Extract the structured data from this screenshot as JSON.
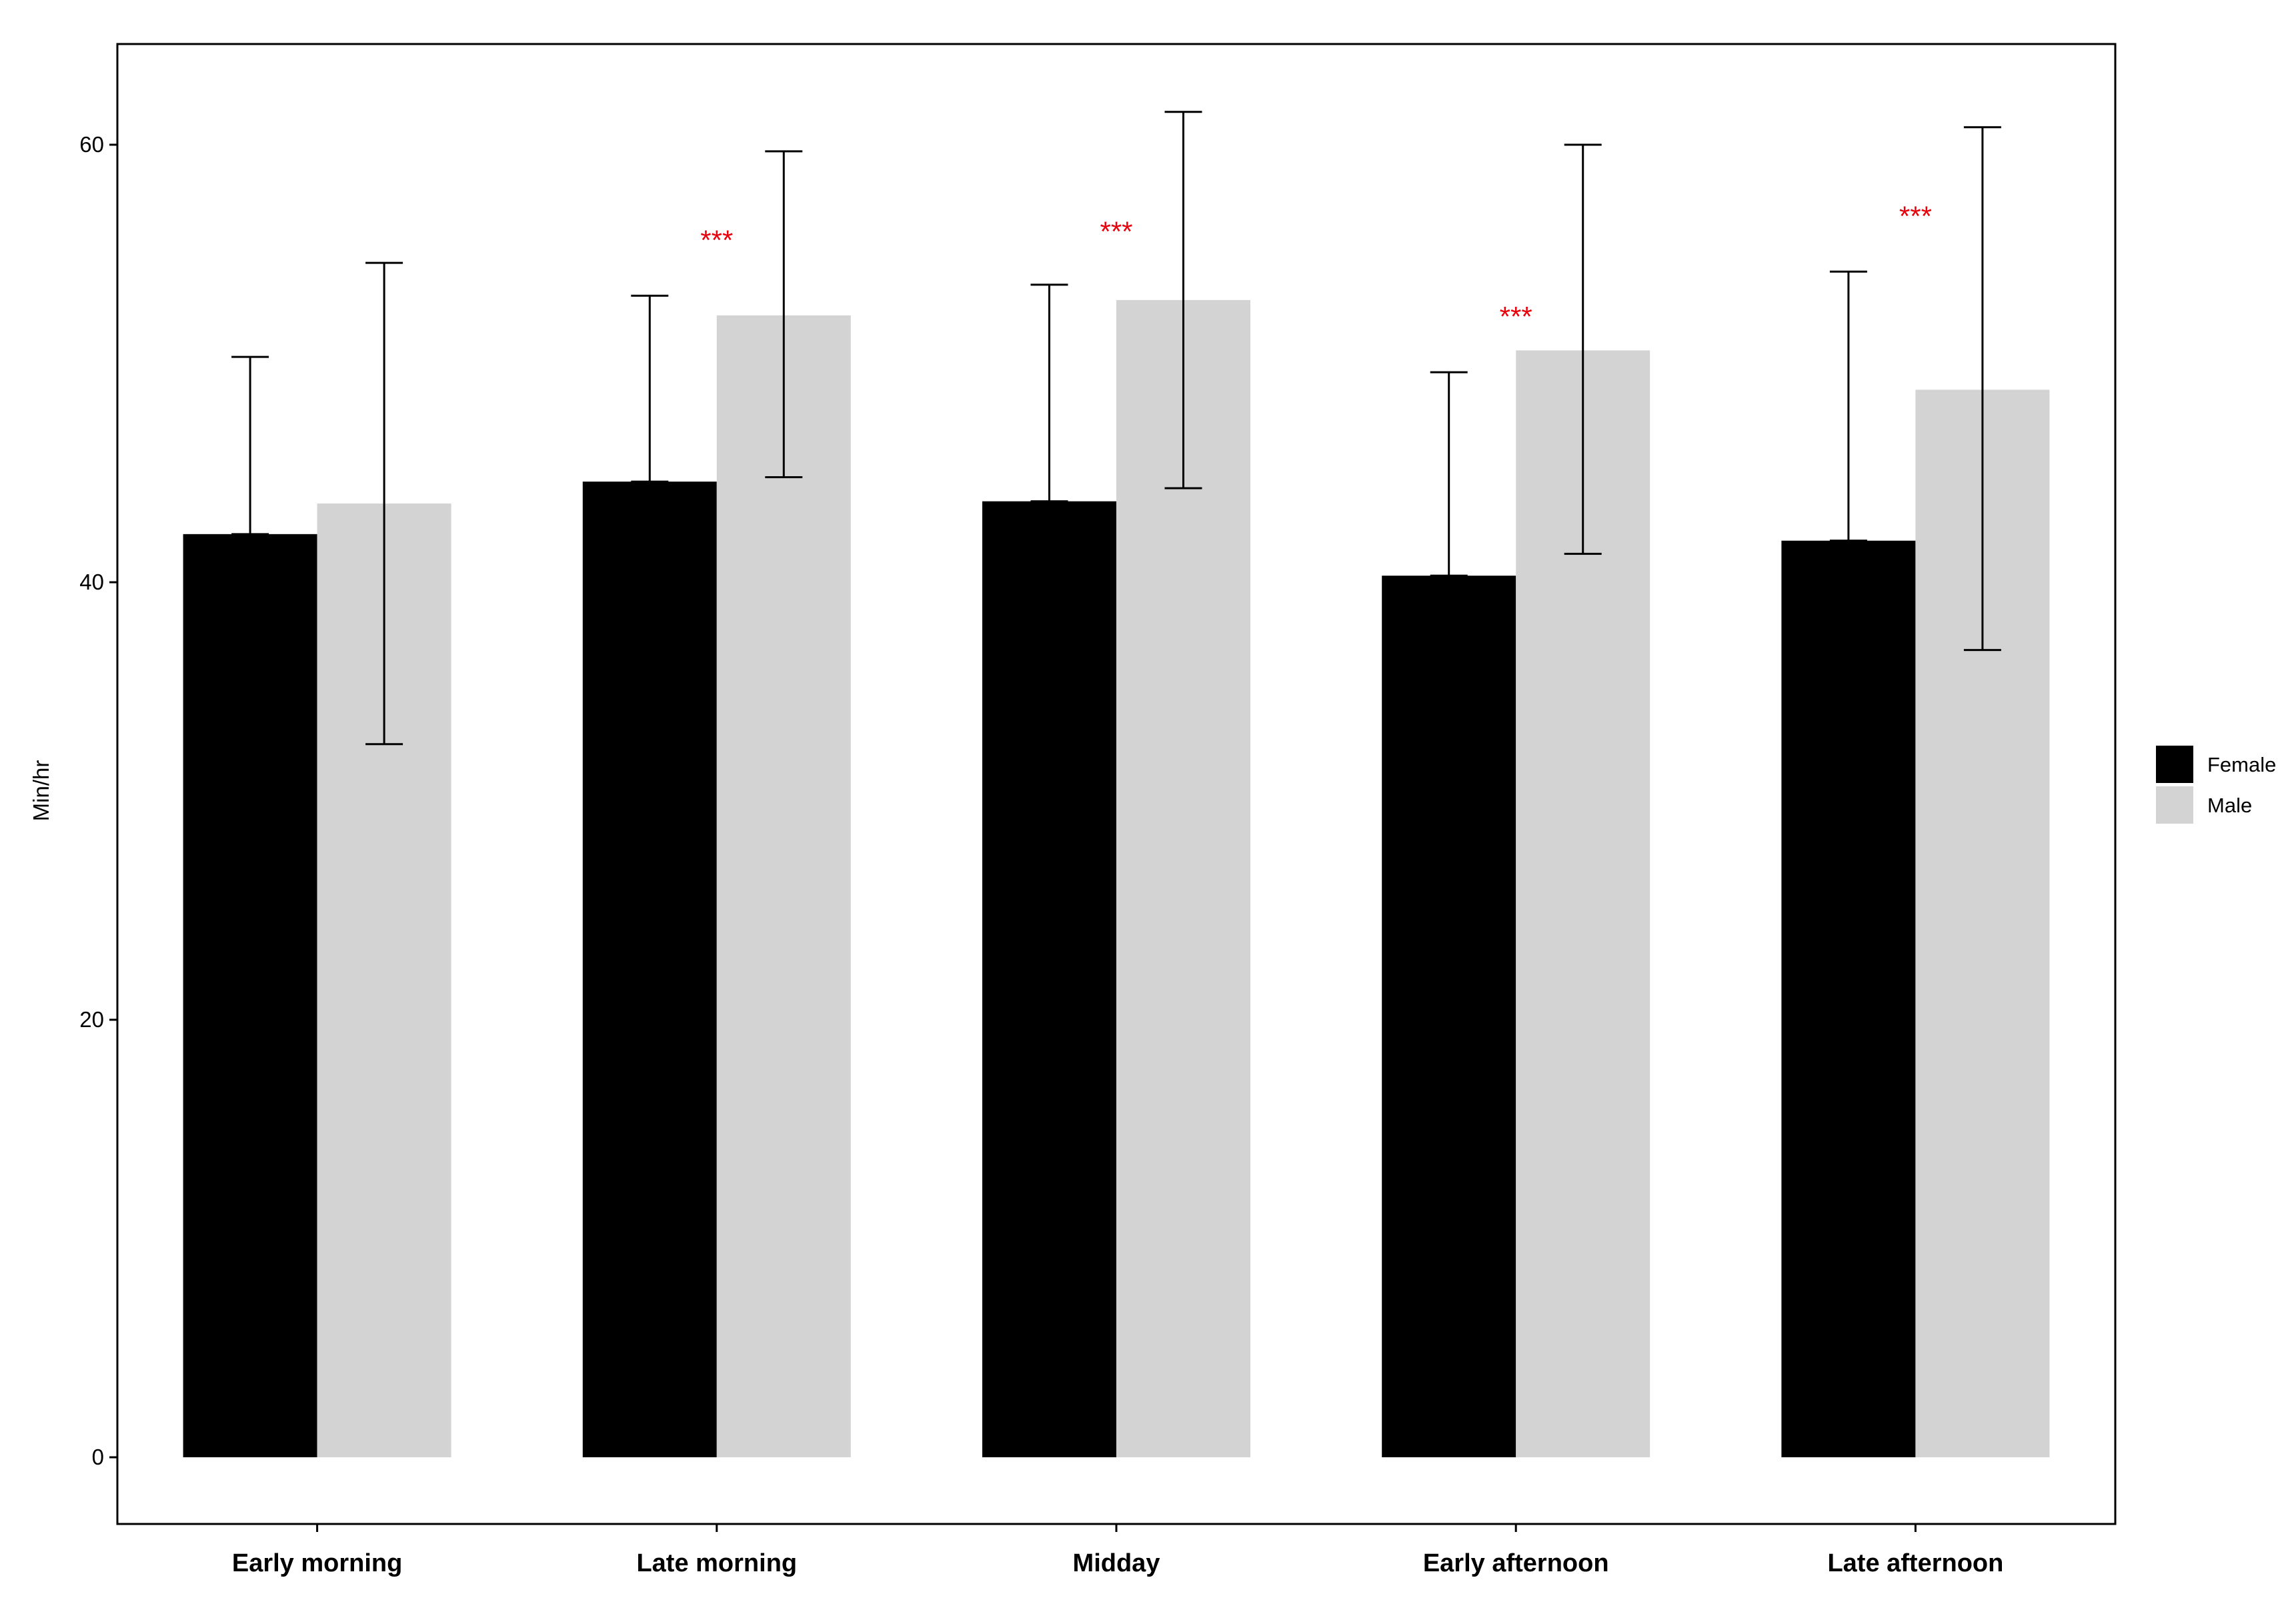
{
  "chart_data": {
    "type": "bar",
    "title": "",
    "xlabel": "",
    "ylabel": "Min/hr",
    "ylim": [
      -3,
      64.5
    ],
    "yticks": [
      0,
      20,
      40,
      60
    ],
    "grid": false,
    "legend_position": "right",
    "categories": [
      "Early morning",
      "Late morning",
      "Midday",
      "Early afternoon",
      "Late afternoon"
    ],
    "series": [
      {
        "name": "Female",
        "color": "#000000",
        "values": [
          42.2,
          44.6,
          43.7,
          40.3,
          41.9
        ],
        "error_low": [
          42.2,
          44.6,
          43.7,
          40.3,
          41.9
        ],
        "error_high": [
          50.3,
          53.1,
          53.6,
          49.6,
          54.2
        ]
      },
      {
        "name": "Male",
        "color": "#d3d3d3",
        "values": [
          43.6,
          52.2,
          52.9,
          50.6,
          48.8
        ],
        "error_low": [
          32.6,
          44.8,
          44.3,
          41.3,
          36.9
        ],
        "error_high": [
          54.6,
          59.7,
          61.5,
          60.0,
          60.8
        ]
      }
    ],
    "annotations": [
      {
        "category": "Late morning",
        "text": "***",
        "y": 55.2,
        "color": "#e8000b"
      },
      {
        "category": "Midday",
        "text": "***",
        "y": 55.6,
        "color": "#e8000b"
      },
      {
        "category": "Early afternoon",
        "text": "***",
        "y": 51.7,
        "color": "#e8000b"
      },
      {
        "category": "Late afternoon",
        "text": "***",
        "y": 56.3,
        "color": "#e8000b"
      }
    ]
  }
}
